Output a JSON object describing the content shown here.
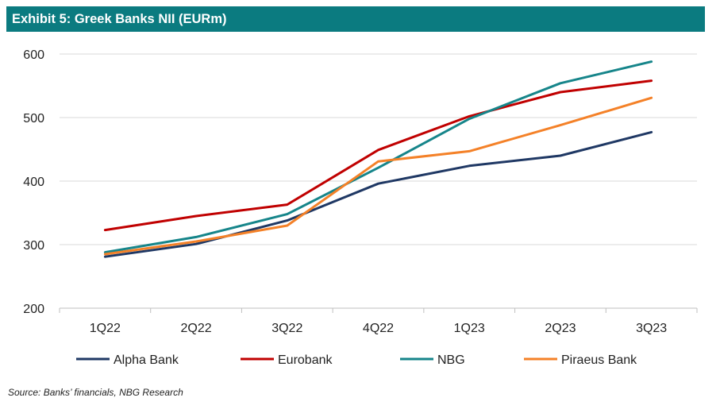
{
  "title": "Exhibit 5: Greek Banks NII (EURm)",
  "source": "Source: Banks’ financials, NBG Research",
  "chart_data": {
    "type": "line",
    "title": "Exhibit 5: Greek Banks NII (EURm)",
    "xlabel": "",
    "ylabel": "",
    "categories": [
      "1Q22",
      "2Q22",
      "3Q22",
      "4Q22",
      "1Q23",
      "2Q23",
      "3Q23"
    ],
    "ylim": [
      200,
      600
    ],
    "yticks": [
      200,
      300,
      400,
      500,
      600
    ],
    "grid": "horizontal",
    "legend": "bottom",
    "series": [
      {
        "name": "Alpha Bank",
        "color": "#1f3864",
        "values": [
          281,
          301,
          338,
          396,
          424,
          440,
          477
        ]
      },
      {
        "name": "Eurobank",
        "color": "#c00000",
        "values": [
          323,
          345,
          363,
          449,
          502,
          540,
          558
        ]
      },
      {
        "name": "NBG",
        "color": "#16858a",
        "values": [
          288,
          312,
          348,
          421,
          498,
          554,
          588
        ]
      },
      {
        "name": "Piraeus Bank",
        "color": "#f48128",
        "values": [
          285,
          305,
          330,
          431,
          447,
          488,
          531
        ]
      }
    ]
  }
}
